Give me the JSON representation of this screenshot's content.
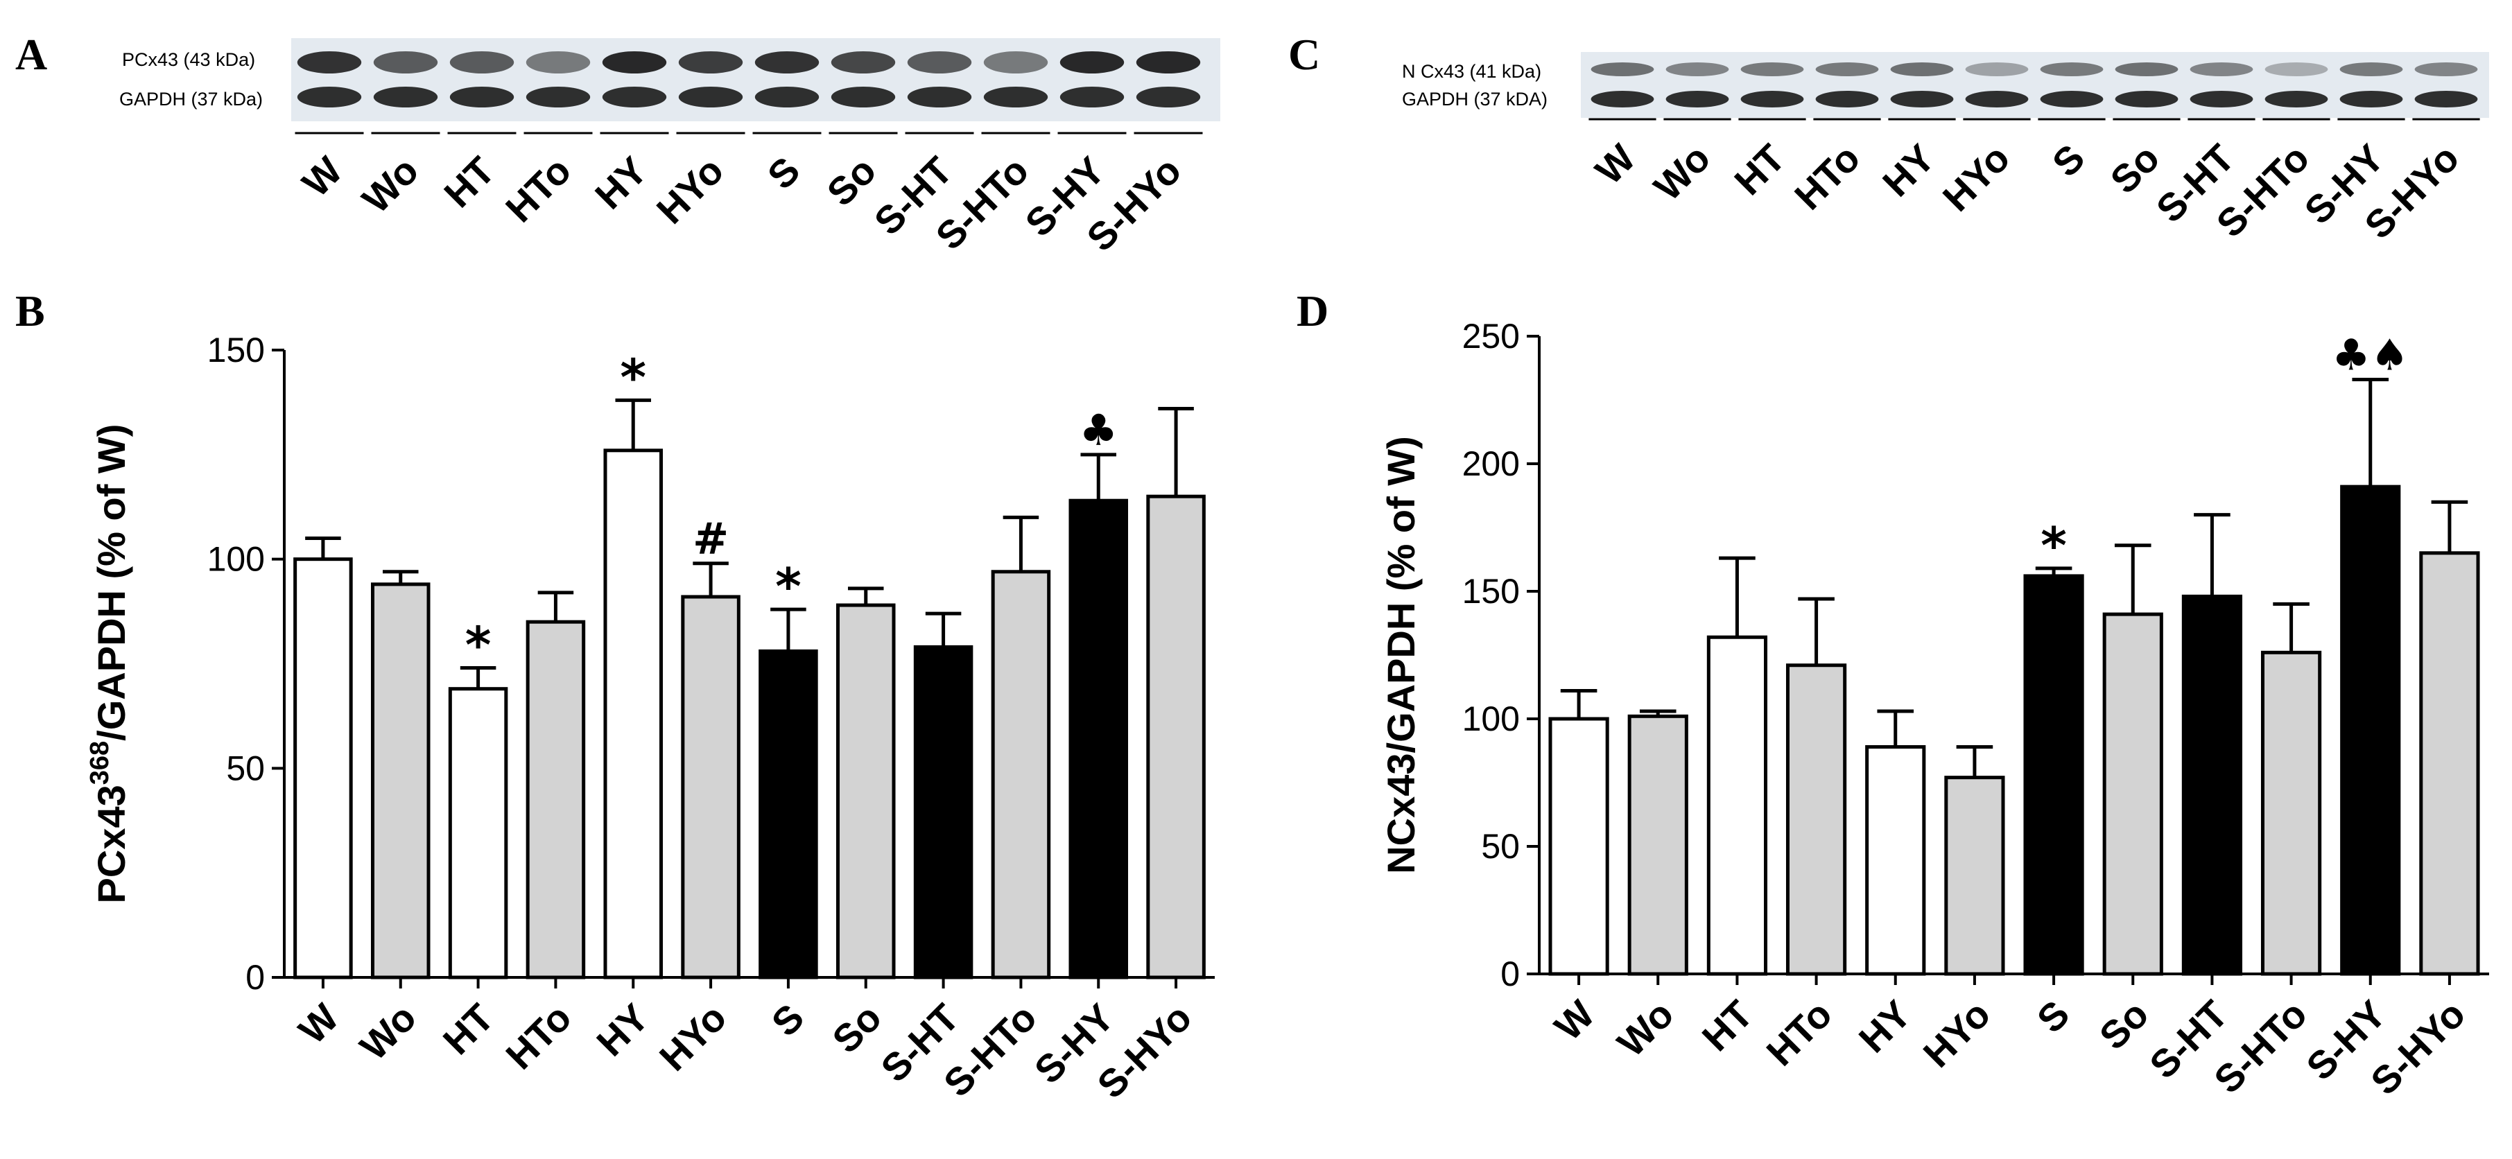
{
  "panels": {
    "A": "A",
    "B": "B",
    "C": "C",
    "D": "D"
  },
  "blots": [
    {
      "panel": "A",
      "bands": [
        "PCx43 (43 kDa)",
        "GAPDH (37 kDa)"
      ],
      "lanes": [
        "W",
        "Wo",
        "HT",
        "HTo",
        "HY",
        "HYo",
        "S",
        "So",
        "S-HT",
        "S-HTo",
        "S-HY",
        "S-HYo"
      ]
    },
    {
      "panel": "C",
      "bands": [
        "N Cx43 (41 kDa)",
        "GAPDH (37 kDA)"
      ],
      "lanes": [
        "W",
        "Wo",
        "HT",
        "HTo",
        "HY",
        "HYo",
        "S",
        "So",
        "S-HT",
        "S-HTo",
        "S-HY",
        "S-HYo"
      ]
    }
  ],
  "colors": {
    "white_bar": "#ffffff",
    "grey_bar": "#d3d3d3",
    "black_bar": "#000000",
    "band": "#1e1e1e",
    "blot_bg": "#e4eaf0"
  },
  "chart_data": [
    {
      "panel": "B",
      "type": "bar",
      "ylabel_main": "PCx43",
      "ylabel_sup": "368",
      "ylabel_rest": "/GAPDH (% of W)",
      "xlabel": "",
      "ylim": [
        0,
        150
      ],
      "yticks": [
        0,
        50,
        100,
        150
      ],
      "categories": [
        "W",
        "Wo",
        "HT",
        "HTo",
        "HY",
        "HYo",
        "S",
        "So",
        "S-HT",
        "S-HTo",
        "S-HY",
        "S-HYo"
      ],
      "values": [
        100,
        94,
        69,
        85,
        126,
        91,
        78,
        89,
        79,
        97,
        114,
        115
      ],
      "errors": [
        5,
        3,
        5,
        7,
        12,
        8,
        10,
        4,
        8,
        13,
        11,
        21
      ],
      "fills": [
        "white",
        "grey",
        "white",
        "grey",
        "white",
        "grey",
        "black",
        "grey",
        "black",
        "grey",
        "black",
        "grey"
      ],
      "annotations": [
        "",
        "",
        "*",
        "",
        "*",
        "#",
        "*",
        "",
        "",
        "",
        "♣",
        ""
      ]
    },
    {
      "panel": "D",
      "type": "bar",
      "ylabel_main": "NCx43/GAPDH (% of W)",
      "ylabel_sup": "",
      "ylabel_rest": "",
      "xlabel": "",
      "ylim": [
        0,
        250
      ],
      "yticks": [
        0,
        50,
        100,
        150,
        200,
        250
      ],
      "categories": [
        "W",
        "Wo",
        "HT",
        "HTo",
        "HY",
        "HYo",
        "S",
        "So",
        "S-HT",
        "S-HTo",
        "S-HY",
        "S-HYo"
      ],
      "values": [
        100,
        101,
        132,
        121,
        89,
        77,
        156,
        141,
        148,
        126,
        191,
        165
      ],
      "errors": [
        11,
        2,
        31,
        26,
        14,
        12,
        3,
        27,
        32,
        19,
        42,
        20
      ],
      "fills": [
        "white",
        "grey",
        "white",
        "grey",
        "white",
        "grey",
        "black",
        "grey",
        "black",
        "grey",
        "black",
        "grey"
      ],
      "annotations": [
        "",
        "",
        "",
        "",
        "",
        "",
        "*",
        "",
        "",
        "",
        "♣♠",
        ""
      ]
    }
  ]
}
